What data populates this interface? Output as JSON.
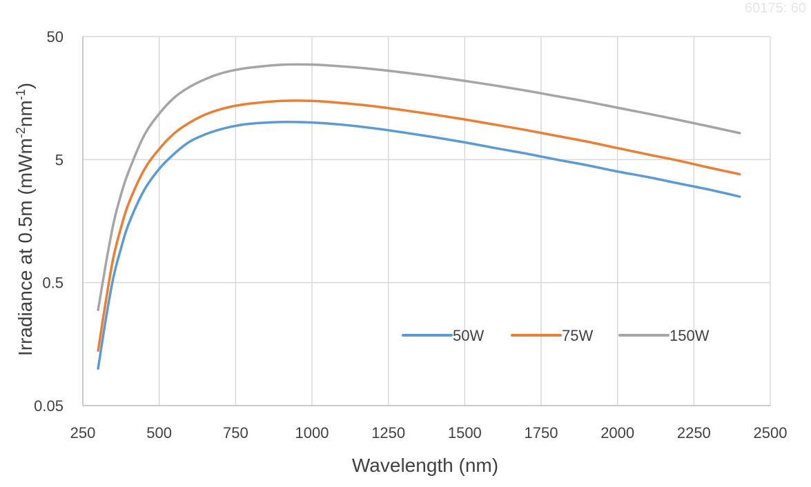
{
  "watermark_text": "60175: 60",
  "chart_data": {
    "type": "line",
    "title": "",
    "xlabel": "Wavelength (nm)",
    "ylabel": {
      "prefix": "Irradiance at 0.5m  (mWm",
      "sup1": "-2",
      "mid": "nm",
      "sup2": "-1",
      "suffix": ")"
    },
    "x_scale": "linear",
    "y_scale": "log",
    "xlim": [
      250,
      2500
    ],
    "ylim": [
      0.05,
      50
    ],
    "x_ticks": [
      250,
      500,
      750,
      1000,
      1250,
      1500,
      1750,
      2000,
      2250,
      2500
    ],
    "x_tick_labels": [
      "250",
      "500",
      "750",
      "1000",
      "1250",
      "1500",
      "1750",
      "2000",
      "2250",
      "2500"
    ],
    "y_ticks": [
      0.05,
      0.5,
      5,
      50
    ],
    "y_tick_labels": [
      "0.05",
      "0.5",
      "5",
      "50"
    ],
    "grid": true,
    "legend_position": "bottom-right, inside plot",
    "x": [
      300,
      325,
      350,
      375,
      400,
      450,
      500,
      550,
      600,
      650,
      700,
      750,
      800,
      900,
      1000,
      1100,
      1200,
      1300,
      1400,
      1500,
      1600,
      1700,
      1800,
      1900,
      2000,
      2100,
      2200,
      2300,
      2400
    ],
    "series": [
      {
        "name": "50W",
        "color": "#5b9bd5",
        "values": [
          0.1,
          0.25,
          0.55,
          0.95,
          1.5,
          2.8,
          4.2,
          5.6,
          7.0,
          8.0,
          8.8,
          9.4,
          9.8,
          10.1,
          10.0,
          9.6,
          9.0,
          8.3,
          7.6,
          6.9,
          6.2,
          5.6,
          5.0,
          4.5,
          4.0,
          3.6,
          3.2,
          2.85,
          2.5
        ]
      },
      {
        "name": "75W",
        "color": "#ed7d31",
        "values": [
          0.14,
          0.35,
          0.8,
          1.4,
          2.2,
          4.1,
          6.1,
          8.2,
          10.0,
          11.6,
          12.8,
          13.7,
          14.3,
          15.0,
          15.0,
          14.4,
          13.6,
          12.6,
          11.6,
          10.6,
          9.6,
          8.7,
          7.8,
          7.0,
          6.2,
          5.5,
          4.9,
          4.3,
          3.8
        ]
      },
      {
        "name": "150W",
        "color": "#a5a5a5",
        "values": [
          0.3,
          0.7,
          1.5,
          2.6,
          4.0,
          7.8,
          11.8,
          16.0,
          19.5,
          22.5,
          25.0,
          26.8,
          28.0,
          29.5,
          29.6,
          28.6,
          27.2,
          25.5,
          23.7,
          21.8,
          20.0,
          18.2,
          16.4,
          14.8,
          13.2,
          11.8,
          10.5,
          9.3,
          8.2
        ]
      }
    ]
  }
}
